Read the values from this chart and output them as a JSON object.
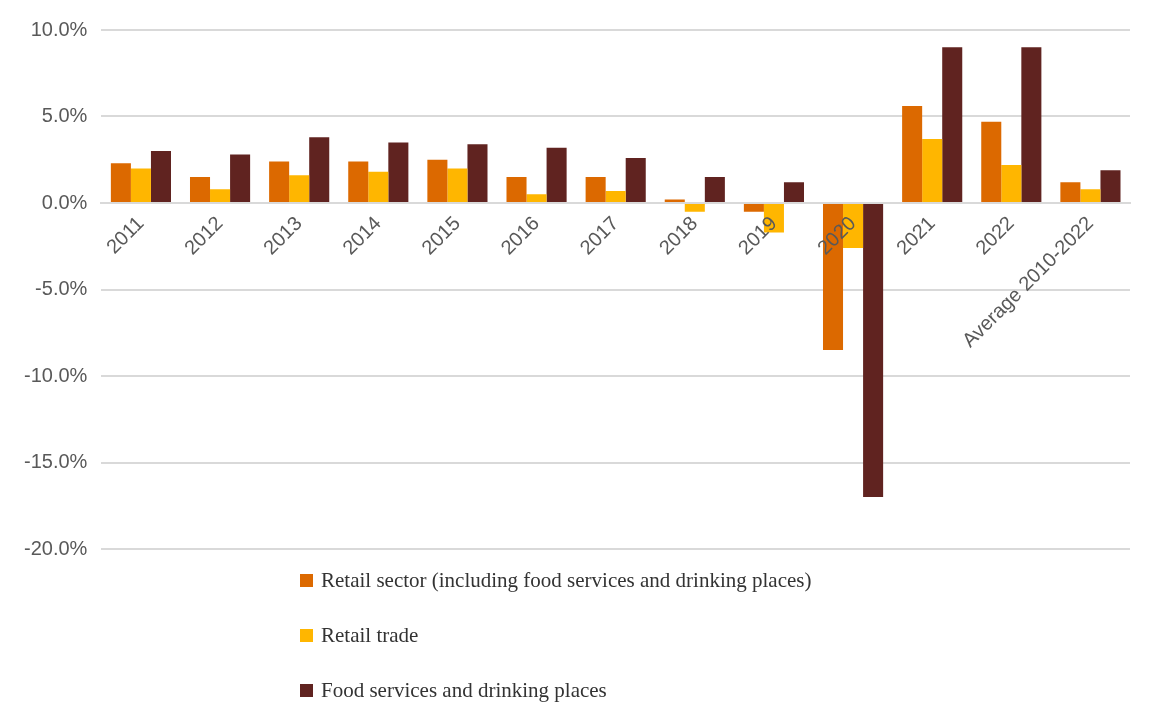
{
  "chart_data": {
    "type": "bar",
    "categories": [
      "2011",
      "2012",
      "2013",
      "2014",
      "2015",
      "2016",
      "2017",
      "2018",
      "2019",
      "2020",
      "2021",
      "2022",
      "Average 2010-2022"
    ],
    "series": [
      {
        "name": "Retail sector (including food services and drinking places)",
        "color": "#dc6900",
        "values": [
          2.3,
          1.5,
          2.4,
          2.4,
          2.5,
          1.5,
          1.5,
          0.2,
          -0.5,
          -8.5,
          5.6,
          4.7,
          1.2
        ]
      },
      {
        "name": "Retail trade",
        "color": "#ffb600",
        "values": [
          2.0,
          0.8,
          1.6,
          1.8,
          2.0,
          0.5,
          0.7,
          -0.5,
          -1.7,
          -2.6,
          3.7,
          2.2,
          0.8
        ]
      },
      {
        "name": "Food services and drinking places",
        "color": "#602320",
        "values": [
          3.0,
          2.8,
          3.8,
          3.5,
          3.4,
          3.2,
          2.6,
          1.5,
          1.2,
          -17.0,
          9.0,
          9.0,
          1.9
        ]
      }
    ],
    "ylim": [
      -20,
      10
    ],
    "yticks": [
      {
        "value": -20,
        "label": "-20.0%"
      },
      {
        "value": -15,
        "label": "-15.0%"
      },
      {
        "value": -10,
        "label": "-10.0%"
      },
      {
        "value": -5,
        "label": "-5.0%"
      },
      {
        "value": 0,
        "label": "0.0%"
      },
      {
        "value": 5,
        "label": "5.0%"
      },
      {
        "value": 10,
        "label": "10.0%"
      }
    ],
    "grid": "y",
    "legend": "bottom"
  }
}
